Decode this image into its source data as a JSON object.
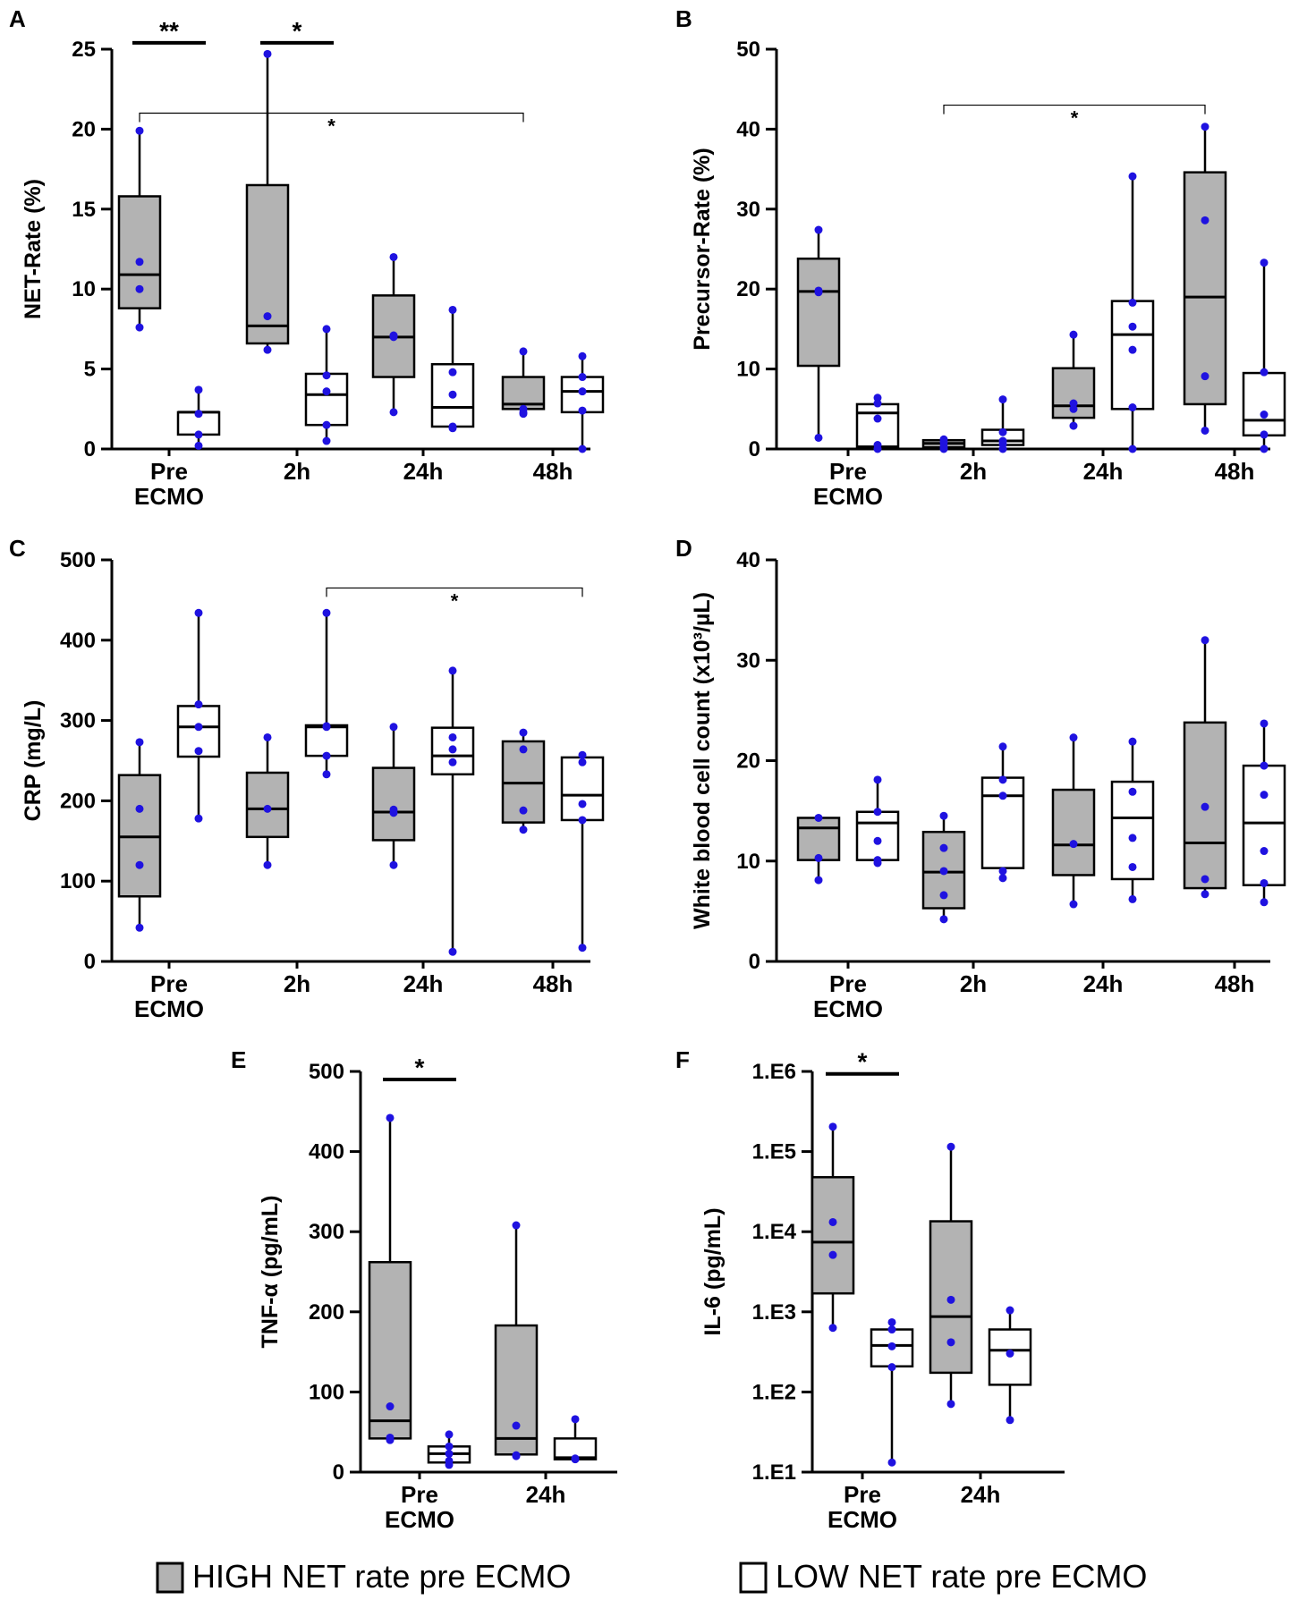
{
  "colors": {
    "high_fill": "#b3b3b3",
    "low_fill": "#ffffff",
    "point": "#1f12e0",
    "stroke": "#000000"
  },
  "legend": {
    "high": "HIGH NET rate pre ECMO",
    "low": "LOW NET rate pre ECMO"
  },
  "chart_data": [
    {
      "panel": "A",
      "type": "box",
      "ylabel": "NET-Rate (%)",
      "ylim": [
        0,
        25
      ],
      "yticks": [
        "0",
        "5",
        "10",
        "15",
        "20",
        "25"
      ],
      "categories": [
        {
          "line1": "Pre",
          "line2": "ECMO"
        },
        {
          "line1": "2h",
          "line2": ""
        },
        {
          "line1": "24h",
          "line2": ""
        },
        {
          "line1": "48h",
          "line2": ""
        }
      ],
      "series": [
        {
          "name": "HIGH",
          "boxes": [
            {
              "min": 7.6,
              "q1": 8.8,
              "median": 10.9,
              "q3": 15.8,
              "max": 19.9,
              "points": [
                11.7,
                10.0,
                19.9,
                7.6
              ]
            },
            {
              "min": 6.2,
              "q1": 6.6,
              "median": 7.7,
              "q3": 16.5,
              "max": 24.7,
              "points": [
                24.7,
                8.3,
                6.2
              ]
            },
            {
              "min": 2.3,
              "q1": 4.5,
              "median": 7.0,
              "q3": 9.6,
              "max": 12.0,
              "points": [
                12.0,
                7.0,
                7.1,
                2.3
              ]
            },
            {
              "min": 2.2,
              "q1": 2.5,
              "median": 2.8,
              "q3": 4.5,
              "max": 6.1,
              "points": [
                6.1,
                2.5,
                2.3,
                2.2
              ]
            }
          ]
        },
        {
          "name": "LOW",
          "boxes": [
            {
              "min": 0.2,
              "q1": 0.9,
              "median": 2.3,
              "q3": 2.3,
              "max": 3.7,
              "points": [
                3.7,
                2.2,
                0.9,
                0.2
              ]
            },
            {
              "min": 0.5,
              "q1": 1.5,
              "median": 3.4,
              "q3": 4.7,
              "max": 7.5,
              "points": [
                7.5,
                4.6,
                3.6,
                1.5,
                0.5
              ]
            },
            {
              "min": 1.3,
              "q1": 1.4,
              "median": 2.6,
              "q3": 5.3,
              "max": 8.7,
              "points": [
                8.7,
                4.8,
                3.4,
                1.4,
                1.3
              ]
            },
            {
              "min": 0.0,
              "q1": 2.3,
              "median": 3.6,
              "q3": 4.5,
              "max": 5.8,
              "points": [
                5.8,
                4.5,
                3.6,
                2.4,
                0.0
              ]
            }
          ]
        }
      ],
      "brackets": [
        {
          "kind": "thick",
          "from": [
            0,
            0
          ],
          "to": [
            0,
            1
          ],
          "y": 25.4,
          "label": "**"
        },
        {
          "kind": "thick",
          "from": [
            1,
            0
          ],
          "to": [
            1,
            1
          ],
          "y": 25.4,
          "label": "*"
        },
        {
          "kind": "thin",
          "from": [
            0,
            0
          ],
          "to": [
            3,
            0
          ],
          "y": 21.0,
          "label": "*"
        }
      ]
    },
    {
      "panel": "B",
      "type": "box",
      "ylabel": "Precursor-Rate (%)",
      "ylim": [
        0,
        50
      ],
      "yticks": [
        "0",
        "10",
        "20",
        "30",
        "40",
        "50"
      ],
      "categories": [
        {
          "line1": "Pre",
          "line2": "ECMO"
        },
        {
          "line1": "2h",
          "line2": ""
        },
        {
          "line1": "24h",
          "line2": ""
        },
        {
          "line1": "48h",
          "line2": ""
        }
      ],
      "series": [
        {
          "name": "HIGH",
          "boxes": [
            {
              "min": 1.4,
              "q1": 10.4,
              "median": 19.7,
              "q3": 23.8,
              "max": 27.4,
              "points": [
                27.4,
                19.8,
                19.6,
                1.4
              ]
            },
            {
              "min": 0.0,
              "q1": 0.2,
              "median": 0.7,
              "q3": 1.1,
              "max": 1.3,
              "points": [
                1.2,
                0.8,
                0.3,
                0.0
              ]
            },
            {
              "min": 2.9,
              "q1": 3.9,
              "median": 5.4,
              "q3": 10.1,
              "max": 14.3,
              "points": [
                14.3,
                5.7,
                5.0,
                2.9
              ]
            },
            {
              "min": 2.3,
              "q1": 5.6,
              "median": 19.0,
              "q3": 34.6,
              "max": 40.3,
              "points": [
                40.3,
                28.6,
                9.1,
                2.3
              ]
            }
          ]
        },
        {
          "name": "LOW",
          "boxes": [
            {
              "min": 0.0,
              "q1": 0.3,
              "median": 4.5,
              "q3": 5.6,
              "max": 6.4,
              "points": [
                6.4,
                5.7,
                3.8,
                0.5,
                0.0
              ]
            },
            {
              "min": 0.0,
              "q1": 0.5,
              "median": 1.0,
              "q3": 2.4,
              "max": 6.2,
              "points": [
                6.2,
                2.1,
                1.0,
                0.6,
                0.0
              ]
            },
            {
              "min": 0.0,
              "q1": 5.0,
              "median": 14.3,
              "q3": 18.5,
              "max": 34.1,
              "points": [
                34.1,
                18.3,
                15.3,
                12.4,
                5.2,
                0.0
              ]
            },
            {
              "min": 0.0,
              "q1": 1.7,
              "median": 3.6,
              "q3": 9.5,
              "max": 23.3,
              "points": [
                23.3,
                9.6,
                4.3,
                1.8,
                0.0
              ]
            }
          ]
        }
      ],
      "brackets": [
        {
          "kind": "thin",
          "from": [
            1,
            0
          ],
          "to": [
            3,
            0
          ],
          "y": 43.0,
          "label": "*"
        }
      ]
    },
    {
      "panel": "C",
      "type": "box",
      "ylabel": "CRP (mg/L)",
      "ylim": [
        0,
        500
      ],
      "yticks": [
        "0",
        "100",
        "200",
        "300",
        "400",
        "500"
      ],
      "categories": [
        {
          "line1": "Pre",
          "line2": "ECMO"
        },
        {
          "line1": "2h",
          "line2": ""
        },
        {
          "line1": "24h",
          "line2": ""
        },
        {
          "line1": "48h",
          "line2": ""
        }
      ],
      "series": [
        {
          "name": "HIGH",
          "boxes": [
            {
              "min": 42,
              "q1": 81,
              "median": 155,
              "q3": 232,
              "max": 273,
              "points": [
                273,
                190,
                120,
                42
              ]
            },
            {
              "min": 120,
              "q1": 155,
              "median": 190,
              "q3": 235,
              "max": 279,
              "points": [
                279,
                190,
                120
              ]
            },
            {
              "min": 120,
              "q1": 151,
              "median": 186,
              "q3": 241,
              "max": 292,
              "points": [
                292,
                189,
                185,
                120
              ]
            },
            {
              "min": 164,
              "q1": 173,
              "median": 222,
              "q3": 274,
              "max": 285,
              "points": [
                285,
                264,
                188,
                164
              ]
            }
          ]
        },
        {
          "name": "LOW",
          "boxes": [
            {
              "min": 178,
              "q1": 255,
              "median": 292,
              "q3": 318,
              "max": 434,
              "points": [
                434,
                320,
                292,
                262,
                178
              ]
            },
            {
              "min": 233,
              "q1": 256,
              "median": 292,
              "q3": 294,
              "max": 434,
              "points": [
                434,
                293,
                292,
                256,
                233
              ]
            },
            {
              "min": 12,
              "q1": 233,
              "median": 256,
              "q3": 291,
              "max": 362,
              "points": [
                362,
                279,
                264,
                248,
                12
              ]
            },
            {
              "min": 17,
              "q1": 176,
              "median": 207,
              "q3": 254,
              "max": 257,
              "points": [
                257,
                248,
                196,
                176,
                17
              ]
            }
          ]
        }
      ],
      "brackets": [
        {
          "kind": "thin",
          "from": [
            1,
            1
          ],
          "to": [
            3,
            1
          ],
          "y": 465,
          "label": "*"
        }
      ]
    },
    {
      "panel": "D",
      "type": "box",
      "ylabel": "White blood cell count (x10³/µL)",
      "ylim": [
        0,
        40
      ],
      "yticks": [
        "0",
        "10",
        "20",
        "30",
        "40"
      ],
      "categories": [
        {
          "line1": "Pre",
          "line2": "ECMO"
        },
        {
          "line1": "2h",
          "line2": ""
        },
        {
          "line1": "24h",
          "line2": ""
        },
        {
          "line1": "48h",
          "line2": ""
        }
      ],
      "series": [
        {
          "name": "HIGH",
          "boxes": [
            {
              "min": 8.1,
              "q1": 10.1,
              "median": 13.3,
              "q3": 14.3,
              "max": 14.3,
              "points": [
                14.3,
                10.3,
                8.1
              ]
            },
            {
              "min": 4.2,
              "q1": 5.3,
              "median": 8.9,
              "q3": 12.9,
              "max": 14.5,
              "points": [
                14.5,
                11.3,
                9.0,
                6.6,
                4.2
              ]
            },
            {
              "min": 5.7,
              "q1": 8.6,
              "median": 11.6,
              "q3": 17.1,
              "max": 22.3,
              "points": [
                22.3,
                11.7,
                5.7
              ]
            },
            {
              "min": 6.7,
              "q1": 7.3,
              "median": 11.8,
              "q3": 23.8,
              "max": 32.0,
              "points": [
                32.0,
                15.4,
                8.2,
                6.7
              ]
            }
          ]
        },
        {
          "name": "LOW",
          "boxes": [
            {
              "min": 9.8,
              "q1": 10.1,
              "median": 13.8,
              "q3": 14.9,
              "max": 18.1,
              "points": [
                18.1,
                14.9,
                12.0,
                10.1,
                9.8
              ]
            },
            {
              "min": 8.3,
              "q1": 9.3,
              "median": 16.5,
              "q3": 18.3,
              "max": 21.4,
              "points": [
                21.4,
                18.1,
                16.5,
                9.0,
                8.3
              ]
            },
            {
              "min": 6.2,
              "q1": 8.2,
              "median": 14.3,
              "q3": 17.9,
              "max": 21.9,
              "points": [
                21.9,
                16.9,
                12.3,
                9.4,
                6.2
              ]
            },
            {
              "min": 5.9,
              "q1": 7.6,
              "median": 13.8,
              "q3": 19.5,
              "max": 23.7,
              "points": [
                23.7,
                19.5,
                16.6,
                11.0,
                7.8,
                5.9
              ]
            }
          ]
        }
      ],
      "brackets": []
    },
    {
      "panel": "E",
      "type": "box",
      "ylabel": "TNF-α (pg/mL)",
      "ylim": [
        0,
        500
      ],
      "yticks": [
        "0",
        "100",
        "200",
        "300",
        "400",
        "500"
      ],
      "categories": [
        {
          "line1": "Pre",
          "line2": "ECMO"
        },
        {
          "line1": "24h",
          "line2": ""
        }
      ],
      "series": [
        {
          "name": "HIGH",
          "boxes": [
            {
              "min": 40,
              "q1": 42,
              "median": 64,
              "q3": 262,
              "max": 442,
              "points": [
                442,
                82,
                43,
                40
              ]
            },
            {
              "min": 20,
              "q1": 22,
              "median": 42,
              "q3": 183,
              "max": 308,
              "points": [
                308,
                58,
                21,
                20
              ]
            }
          ]
        },
        {
          "name": "LOW",
          "boxes": [
            {
              "min": 9,
              "q1": 12,
              "median": 23,
              "q3": 32,
              "max": 47,
              "points": [
                47,
                32,
                23,
                14,
                9
              ]
            },
            {
              "min": 16,
              "q1": 16,
              "median": 18,
              "q3": 42,
              "max": 66,
              "points": [
                66,
                17,
                16
              ]
            }
          ]
        }
      ],
      "brackets": [
        {
          "kind": "thick",
          "from": [
            0,
            0
          ],
          "to": [
            0,
            1
          ],
          "y": 490,
          "label": "*"
        }
      ]
    },
    {
      "panel": "F",
      "type": "box",
      "scale": "log",
      "ylabel": "IL-6 (pg/mL)",
      "ylim": [
        1,
        6
      ],
      "yticks": [
        "1.E1",
        "1.E2",
        "1.E3",
        "1.E4",
        "1.E5",
        "1.E6"
      ],
      "categories": [
        {
          "line1": "Pre",
          "line2": "ECMO"
        },
        {
          "line1": "24h",
          "line2": ""
        }
      ],
      "series": [
        {
          "name": "HIGH",
          "boxes": [
            {
              "min": 2.8,
              "q1": 3.23,
              "median": 3.87,
              "q3": 4.68,
              "max": 5.31,
              "points": [
                5.31,
                4.12,
                3.71,
                2.8
              ]
            },
            {
              "min": 1.85,
              "q1": 2.24,
              "median": 2.94,
              "q3": 4.13,
              "max": 5.06,
              "points": [
                5.06,
                3.15,
                2.62,
                1.85
              ]
            }
          ]
        },
        {
          "name": "LOW",
          "boxes": [
            {
              "min": 1.12,
              "q1": 2.32,
              "median": 2.58,
              "q3": 2.78,
              "max": 2.87,
              "points": [
                2.87,
                2.78,
                2.57,
                2.31,
                1.12
              ]
            },
            {
              "min": 1.65,
              "q1": 2.09,
              "median": 2.52,
              "q3": 2.78,
              "max": 3.02,
              "points": [
                3.02,
                2.48,
                1.65
              ]
            }
          ]
        }
      ],
      "brackets": [
        {
          "kind": "thick",
          "from": [
            0,
            0
          ],
          "to": [
            0,
            1
          ],
          "y": 5.97,
          "label": "*"
        }
      ]
    }
  ]
}
